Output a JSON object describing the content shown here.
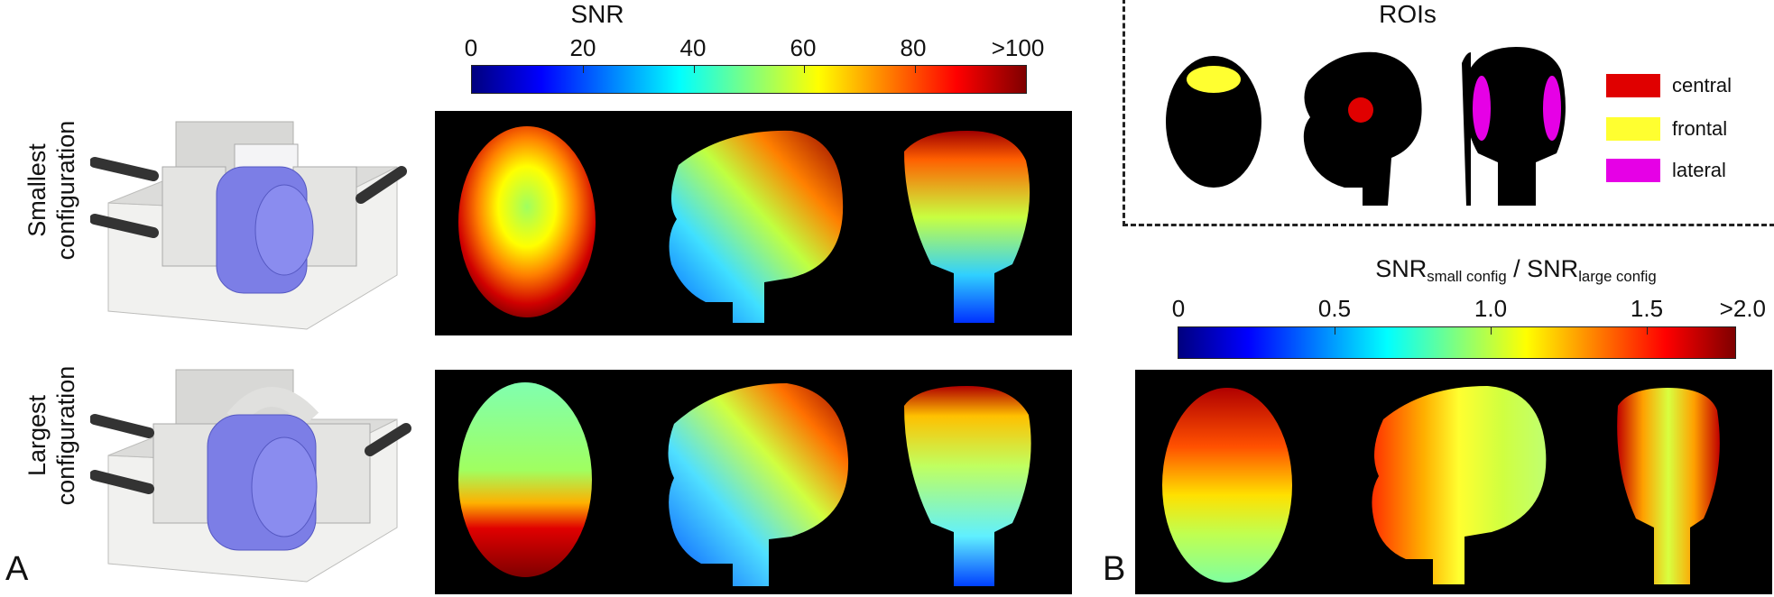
{
  "panel_a": {
    "letter": "A",
    "colorbar": {
      "title": "SNR",
      "ticks": [
        "0",
        "20",
        "40",
        "60",
        "80",
        ">100"
      ]
    },
    "rows": [
      {
        "label_line1": "Smallest",
        "label_line2": "configuration"
      },
      {
        "label_line1": "Largest",
        "label_line2": "configuration"
      }
    ]
  },
  "panel_b": {
    "letter": "B",
    "roi_title": "ROIs",
    "legend": [
      {
        "label": "central",
        "color": "#e00000"
      },
      {
        "label": "frontal",
        "color": "#ffff30"
      },
      {
        "label": "lateral",
        "color": "#e600e6"
      }
    ],
    "ratio_colorbar": {
      "title_main1": "SNR",
      "title_sub1": "small config",
      "title_sep": " / ",
      "title_main2": "SNR",
      "title_sub2": "large config",
      "ticks": [
        "0",
        "0.5",
        "1.0",
        "1.5",
        ">2.0"
      ]
    }
  },
  "colors": {
    "jet": [
      "#00007f",
      "#0000ff",
      "#007fff",
      "#00ffff",
      "#7fff7f",
      "#ffff00",
      "#ff7f00",
      "#ff0000",
      "#7f0000"
    ],
    "device_body": "#e8e8e6",
    "device_coil": "#7c7ee6"
  }
}
